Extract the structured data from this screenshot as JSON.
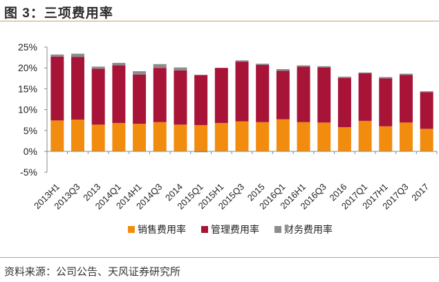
{
  "figure": {
    "title": "图 3：三项费用率",
    "source": "资料来源：公司公告、天风证券研究所"
  },
  "chart_data": {
    "type": "bar",
    "stacked": true,
    "title": "",
    "xlabel": "",
    "ylabel": "",
    "ylim": [
      -5,
      25
    ],
    "yticks": [
      "25%",
      "20%",
      "15%",
      "10%",
      "5%",
      "0%",
      "-5%"
    ],
    "ytick_values": [
      25,
      20,
      15,
      10,
      5,
      0,
      -5
    ],
    "legend_position": "bottom",
    "categories": [
      "2013H1",
      "2013Q3",
      "2013",
      "2014Q1",
      "2014H1",
      "2014Q3",
      "2014",
      "2015Q1",
      "2015H1",
      "2015Q3",
      "2015",
      "2016Q1",
      "2016H1",
      "2016Q3",
      "2016",
      "2017Q1",
      "2017H1",
      "2017Q3",
      "2017"
    ],
    "series": [
      {
        "name": "销售费用率",
        "color": "#f28c0f",
        "values": [
          7.4,
          7.6,
          6.4,
          6.8,
          6.6,
          7.0,
          6.4,
          6.3,
          6.8,
          7.2,
          7.0,
          7.7,
          7.0,
          6.9,
          5.8,
          7.3,
          6.0,
          6.9,
          5.4
        ]
      },
      {
        "name": "管理费用率",
        "color": "#a81438",
        "values": [
          15.3,
          15.0,
          13.4,
          13.8,
          11.8,
          13.0,
          13.0,
          12.0,
          13.2,
          14.3,
          13.7,
          11.6,
          13.3,
          13.2,
          11.8,
          11.4,
          11.5,
          11.4,
          8.8
        ]
      },
      {
        "name": "财务费用率",
        "color": "#8c8c8c",
        "values": [
          0.5,
          0.8,
          0.5,
          0.6,
          0.8,
          0.9,
          0.7,
          -0.2,
          0.0,
          0.3,
          0.3,
          0.4,
          0.3,
          0.3,
          0.3,
          0.2,
          0.3,
          0.3,
          0.2
        ]
      }
    ]
  }
}
